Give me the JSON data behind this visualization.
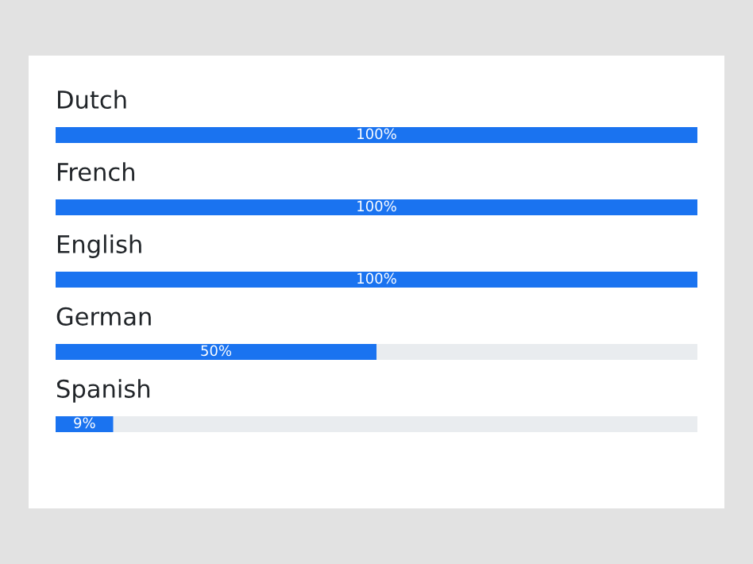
{
  "chart_data": {
    "type": "bar",
    "orientation": "horizontal",
    "stacked": true,
    "categories": [
      "Dutch",
      "French",
      "English",
      "German",
      "Spanish"
    ],
    "series": [
      {
        "color": "#1a73f0",
        "values": [
          100,
          100,
          100,
          50,
          9
        ],
        "value_labels": [
          "100%",
          "100%",
          "100%",
          "50%",
          "9%"
        ]
      },
      {
        "color": "#e9ecef",
        "values": [
          0,
          0,
          0,
          50,
          91
        ]
      }
    ],
    "xlim": [
      0,
      100
    ],
    "legend": false
  }
}
